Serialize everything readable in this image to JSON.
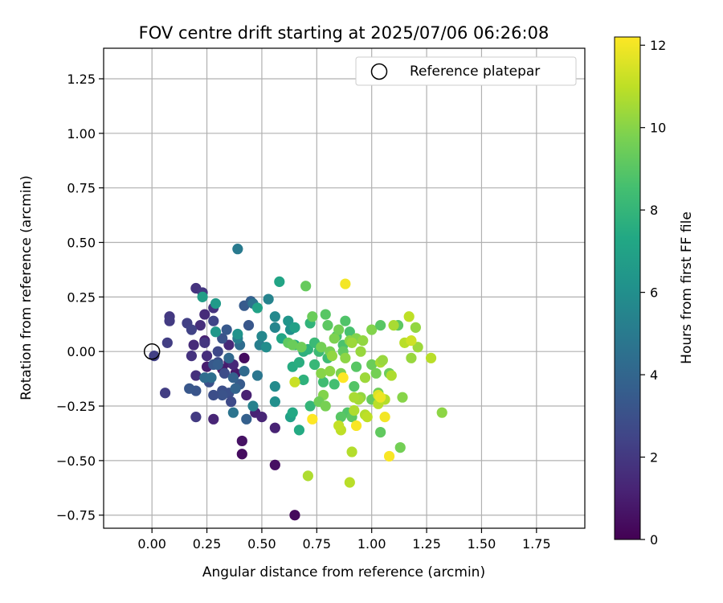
{
  "chart_data": {
    "type": "scatter",
    "title": "FOV centre drift starting at 2025/07/06 06:26:08",
    "xlabel": "Angular distance from reference (arcmin)",
    "ylabel": "Rotation from reference (arcmin)",
    "xlim": [
      -0.22,
      1.97
    ],
    "ylim": [
      -0.81,
      1.39
    ],
    "xticks": [
      "0.00",
      "0.25",
      "0.50",
      "0.75",
      "1.00",
      "1.25",
      "1.50",
      "1.75"
    ],
    "xtick_values": [
      0,
      0.25,
      0.5,
      0.75,
      1.0,
      1.25,
      1.5,
      1.75
    ],
    "yticks": [
      "−0.75",
      "−0.50",
      "−0.25",
      "0.00",
      "0.25",
      "0.50",
      "0.75",
      "1.00",
      "1.25"
    ],
    "ytick_values": [
      -0.75,
      -0.5,
      -0.25,
      0,
      0.25,
      0.5,
      0.75,
      1.0,
      1.25
    ],
    "grid": true,
    "legend": {
      "placement": "top-right",
      "entries": [
        "Reference platepar"
      ]
    },
    "reference_point": {
      "x": 0.0,
      "y": 0.0
    },
    "colorbar": {
      "label": "Hours from first FF file",
      "range": [
        0,
        12.2
      ],
      "ticks": [
        "0",
        "2",
        "4",
        "6",
        "8",
        "10",
        "12"
      ],
      "tick_values": [
        0,
        2,
        4,
        6,
        8,
        10,
        12
      ],
      "colormap": "viridis"
    },
    "points": [
      {
        "x": 0.65,
        "y": -0.75,
        "h": 0.3
      },
      {
        "x": 0.41,
        "y": -0.47,
        "h": 0.4
      },
      {
        "x": 0.41,
        "y": -0.41,
        "h": 0.6
      },
      {
        "x": 0.56,
        "y": -0.52,
        "h": 0.5
      },
      {
        "x": 0.42,
        "y": -0.03,
        "h": 0.4
      },
      {
        "x": 0.38,
        "y": -0.1,
        "h": 0.8
      },
      {
        "x": 0.32,
        "y": -0.08,
        "h": 0.9
      },
      {
        "x": 0.25,
        "y": -0.07,
        "h": 1.0
      },
      {
        "x": 0.24,
        "y": 0.05,
        "h": 1.1
      },
      {
        "x": 0.35,
        "y": -0.05,
        "h": 1.0
      },
      {
        "x": 0.47,
        "y": -0.28,
        "h": 1.2
      },
      {
        "x": 0.43,
        "y": -0.2,
        "h": 1.1
      },
      {
        "x": 0.5,
        "y": -0.3,
        "h": 1.3
      },
      {
        "x": 0.56,
        "y": -0.35,
        "h": 1.2
      },
      {
        "x": 0.28,
        "y": -0.31,
        "h": 1.3
      },
      {
        "x": 0.37,
        "y": -0.06,
        "h": 1.4
      },
      {
        "x": 0.35,
        "y": 0.03,
        "h": 1.4
      },
      {
        "x": 0.25,
        "y": -0.02,
        "h": 1.6
      },
      {
        "x": 0.19,
        "y": 0.03,
        "h": 1.5
      },
      {
        "x": 0.2,
        "y": -0.11,
        "h": 1.7
      },
      {
        "x": 0.18,
        "y": -0.02,
        "h": 1.8
      },
      {
        "x": 0.22,
        "y": 0.12,
        "h": 1.6
      },
      {
        "x": 0.24,
        "y": 0.17,
        "h": 1.5
      },
      {
        "x": 0.2,
        "y": 0.29,
        "h": 1.8
      },
      {
        "x": 0.23,
        "y": 0.27,
        "h": 2.0
      },
      {
        "x": 0.24,
        "y": 0.04,
        "h": 1.9
      },
      {
        "x": 0.28,
        "y": 0.2,
        "h": 1.8
      },
      {
        "x": 0.08,
        "y": 0.16,
        "h": 2.0
      },
      {
        "x": 0.08,
        "y": 0.14,
        "h": 2.1
      },
      {
        "x": 0.07,
        "y": 0.04,
        "h": 2.2
      },
      {
        "x": 0.16,
        "y": 0.13,
        "h": 2.3
      },
      {
        "x": 0.18,
        "y": 0.1,
        "h": 2.4
      },
      {
        "x": 0.2,
        "y": -0.3,
        "h": 2.1
      },
      {
        "x": 0.06,
        "y": -0.19,
        "h": 2.2
      },
      {
        "x": 0.01,
        "y": -0.02,
        "h": 2.3
      },
      {
        "x": 0.28,
        "y": 0.14,
        "h": 2.5
      },
      {
        "x": 0.3,
        "y": 0.0,
        "h": 2.6
      },
      {
        "x": 0.3,
        "y": -0.05,
        "h": 2.7
      },
      {
        "x": 0.33,
        "y": -0.1,
        "h": 2.8
      },
      {
        "x": 0.32,
        "y": -0.18,
        "h": 2.9
      },
      {
        "x": 0.35,
        "y": -0.19,
        "h": 3.0
      },
      {
        "x": 0.32,
        "y": -0.2,
        "h": 3.1
      },
      {
        "x": 0.28,
        "y": -0.2,
        "h": 2.9
      },
      {
        "x": 0.26,
        "y": -0.14,
        "h": 3.0
      },
      {
        "x": 0.2,
        "y": -0.18,
        "h": 3.2
      },
      {
        "x": 0.17,
        "y": -0.17,
        "h": 3.3
      },
      {
        "x": 0.36,
        "y": -0.23,
        "h": 2.7
      },
      {
        "x": 0.32,
        "y": 0.06,
        "h": 3.1
      },
      {
        "x": 0.34,
        "y": 0.1,
        "h": 3.4
      },
      {
        "x": 0.28,
        "y": -0.06,
        "h": 3.4
      },
      {
        "x": 0.3,
        "y": -0.06,
        "h": 3.6
      },
      {
        "x": 0.44,
        "y": 0.12,
        "h": 3.3
      },
      {
        "x": 0.42,
        "y": 0.21,
        "h": 3.5
      },
      {
        "x": 0.45,
        "y": 0.23,
        "h": 3.6
      },
      {
        "x": 0.4,
        "y": -0.15,
        "h": 3.5
      },
      {
        "x": 0.43,
        "y": -0.31,
        "h": 3.7
      },
      {
        "x": 0.37,
        "y": -0.12,
        "h": 3.8
      },
      {
        "x": 0.38,
        "y": -0.17,
        "h": 3.9
      },
      {
        "x": 0.35,
        "y": -0.03,
        "h": 4.1
      },
      {
        "x": 0.42,
        "y": -0.09,
        "h": 4.2
      },
      {
        "x": 0.4,
        "y": 0.03,
        "h": 4.3
      },
      {
        "x": 0.24,
        "y": -0.12,
        "h": 4.3
      },
      {
        "x": 0.27,
        "y": -0.12,
        "h": 4.4
      },
      {
        "x": 0.46,
        "y": 0.22,
        "h": 4.6
      },
      {
        "x": 0.48,
        "y": -0.11,
        "h": 4.8
      },
      {
        "x": 0.37,
        "y": -0.28,
        "h": 4.7
      },
      {
        "x": 0.39,
        "y": 0.47,
        "h": 5.0
      },
      {
        "x": 0.39,
        "y": 0.06,
        "h": 5.1
      },
      {
        "x": 0.46,
        "y": -0.25,
        "h": 5.3
      },
      {
        "x": 0.49,
        "y": 0.03,
        "h": 5.2
      },
      {
        "x": 0.5,
        "y": 0.07,
        "h": 5.6
      },
      {
        "x": 0.53,
        "y": 0.24,
        "h": 5.4
      },
      {
        "x": 0.56,
        "y": 0.11,
        "h": 5.5
      },
      {
        "x": 0.56,
        "y": 0.16,
        "h": 5.7
      },
      {
        "x": 0.52,
        "y": 0.02,
        "h": 5.9
      },
      {
        "x": 0.56,
        "y": -0.16,
        "h": 5.8
      },
      {
        "x": 0.56,
        "y": -0.23,
        "h": 6.0
      },
      {
        "x": 0.63,
        "y": 0.1,
        "h": 6.1
      },
      {
        "x": 0.62,
        "y": 0.14,
        "h": 6.3
      },
      {
        "x": 0.39,
        "y": 0.08,
        "h": 6.2
      },
      {
        "x": 0.29,
        "y": 0.09,
        "h": 6.4
      },
      {
        "x": 0.29,
        "y": 0.22,
        "h": 6.6
      },
      {
        "x": 0.23,
        "y": 0.25,
        "h": 6.8
      },
      {
        "x": 0.48,
        "y": 0.2,
        "h": 7.0
      },
      {
        "x": 0.58,
        "y": 0.32,
        "h": 7.1
      },
      {
        "x": 0.65,
        "y": 0.11,
        "h": 6.9
      },
      {
        "x": 0.59,
        "y": 0.06,
        "h": 7.2
      },
      {
        "x": 0.63,
        "y": -0.3,
        "h": 6.9
      },
      {
        "x": 0.64,
        "y": -0.28,
        "h": 7.3
      },
      {
        "x": 0.67,
        "y": -0.36,
        "h": 7.4
      },
      {
        "x": 0.64,
        "y": -0.07,
        "h": 7.5
      },
      {
        "x": 0.67,
        "y": -0.05,
        "h": 7.6
      },
      {
        "x": 0.65,
        "y": 0.03,
        "h": 7.4
      },
      {
        "x": 0.69,
        "y": 0.0,
        "h": 7.7
      },
      {
        "x": 0.71,
        "y": 0.01,
        "h": 7.8
      },
      {
        "x": 0.72,
        "y": 0.13,
        "h": 7.9
      },
      {
        "x": 0.69,
        "y": -0.13,
        "h": 7.8
      },
      {
        "x": 0.72,
        "y": -0.25,
        "h": 8.0
      },
      {
        "x": 0.74,
        "y": -0.06,
        "h": 8.1
      },
      {
        "x": 0.74,
        "y": 0.04,
        "h": 8.2
      },
      {
        "x": 0.76,
        "y": 0.0,
        "h": 8.3
      },
      {
        "x": 0.78,
        "y": -0.14,
        "h": 8.4
      },
      {
        "x": 0.8,
        "y": -0.03,
        "h": 8.3
      },
      {
        "x": 0.83,
        "y": -0.15,
        "h": 8.5
      },
      {
        "x": 0.84,
        "y": 0.07,
        "h": 8.6
      },
      {
        "x": 0.87,
        "y": 0.03,
        "h": 8.7
      },
      {
        "x": 0.88,
        "y": 0.14,
        "h": 8.8
      },
      {
        "x": 0.9,
        "y": 0.09,
        "h": 8.6
      },
      {
        "x": 0.92,
        "y": -0.16,
        "h": 8.9
      },
      {
        "x": 0.93,
        "y": -0.07,
        "h": 9.0
      },
      {
        "x": 0.89,
        "y": -0.28,
        "h": 8.8
      },
      {
        "x": 0.91,
        "y": -0.3,
        "h": 9.1
      },
      {
        "x": 0.86,
        "y": -0.3,
        "h": 9.0
      },
      {
        "x": 0.87,
        "y": 0.0,
        "h": 9.2
      },
      {
        "x": 0.79,
        "y": 0.17,
        "h": 9.0
      },
      {
        "x": 0.8,
        "y": 0.12,
        "h": 9.1
      },
      {
        "x": 0.7,
        "y": 0.3,
        "h": 9.3
      },
      {
        "x": 0.62,
        "y": 0.04,
        "h": 9.2
      },
      {
        "x": 0.64,
        "y": 0.03,
        "h": 9.4
      },
      {
        "x": 0.68,
        "y": 0.02,
        "h": 9.5
      },
      {
        "x": 0.73,
        "y": 0.16,
        "h": 9.4
      },
      {
        "x": 0.77,
        "y": 0.02,
        "h": 9.6
      },
      {
        "x": 0.81,
        "y": 0.0,
        "h": 9.7
      },
      {
        "x": 0.83,
        "y": 0.06,
        "h": 9.8
      },
      {
        "x": 0.85,
        "y": 0.1,
        "h": 9.6
      },
      {
        "x": 0.86,
        "y": -0.1,
        "h": 9.8
      },
      {
        "x": 0.78,
        "y": -0.2,
        "h": 9.9
      },
      {
        "x": 0.76,
        "y": -0.23,
        "h": 9.5
      },
      {
        "x": 0.79,
        "y": -0.25,
        "h": 9.7
      },
      {
        "x": 0.77,
        "y": -0.1,
        "h": 10.0
      },
      {
        "x": 0.81,
        "y": -0.09,
        "h": 10.1
      },
      {
        "x": 0.82,
        "y": -0.02,
        "h": 10.2
      },
      {
        "x": 0.88,
        "y": -0.03,
        "h": 10.1
      },
      {
        "x": 0.9,
        "y": 0.05,
        "h": 10.0
      },
      {
        "x": 0.93,
        "y": 0.06,
        "h": 9.9
      },
      {
        "x": 0.95,
        "y": 0.0,
        "h": 10.3
      },
      {
        "x": 0.96,
        "y": 0.05,
        "h": 10.2
      },
      {
        "x": 1.0,
        "y": 0.1,
        "h": 9.9
      },
      {
        "x": 1.0,
        "y": -0.06,
        "h": 9.4
      },
      {
        "x": 1.02,
        "y": -0.1,
        "h": 9.6
      },
      {
        "x": 1.0,
        "y": -0.22,
        "h": 9.3
      },
      {
        "x": 1.03,
        "y": -0.19,
        "h": 9.5
      },
      {
        "x": 1.04,
        "y": -0.37,
        "h": 9.2
      },
      {
        "x": 1.04,
        "y": 0.12,
        "h": 9.0
      },
      {
        "x": 1.08,
        "y": -0.1,
        "h": 9.4
      },
      {
        "x": 1.12,
        "y": 0.12,
        "h": 9.1
      },
      {
        "x": 1.13,
        "y": -0.44,
        "h": 9.6
      },
      {
        "x": 1.14,
        "y": -0.21,
        "h": 10.0
      },
      {
        "x": 1.18,
        "y": -0.03,
        "h": 10.3
      },
      {
        "x": 1.2,
        "y": 0.11,
        "h": 10.2
      },
      {
        "x": 1.21,
        "y": 0.02,
        "h": 10.4
      },
      {
        "x": 1.32,
        "y": -0.28,
        "h": 10.1
      },
      {
        "x": 1.27,
        "y": -0.03,
        "h": 10.9
      },
      {
        "x": 1.17,
        "y": 0.16,
        "h": 11.0
      },
      {
        "x": 1.1,
        "y": 0.12,
        "h": 10.6
      },
      {
        "x": 1.09,
        "y": -0.11,
        "h": 10.7
      },
      {
        "x": 1.06,
        "y": -0.22,
        "h": 10.8
      },
      {
        "x": 1.03,
        "y": -0.24,
        "h": 10.9
      },
      {
        "x": 1.04,
        "y": -0.05,
        "h": 10.6
      },
      {
        "x": 1.05,
        "y": -0.04,
        "h": 10.3
      },
      {
        "x": 0.97,
        "y": -0.12,
        "h": 10.4
      },
      {
        "x": 0.95,
        "y": -0.21,
        "h": 10.2
      },
      {
        "x": 0.94,
        "y": -0.22,
        "h": 10.5
      },
      {
        "x": 0.92,
        "y": -0.21,
        "h": 10.6
      },
      {
        "x": 0.92,
        "y": -0.27,
        "h": 10.7
      },
      {
        "x": 0.97,
        "y": -0.29,
        "h": 10.8
      },
      {
        "x": 0.98,
        "y": -0.3,
        "h": 11.0
      },
      {
        "x": 0.86,
        "y": -0.36,
        "h": 11.0
      },
      {
        "x": 0.85,
        "y": -0.34,
        "h": 11.1
      },
      {
        "x": 0.91,
        "y": -0.46,
        "h": 10.8
      },
      {
        "x": 0.9,
        "y": -0.6,
        "h": 10.9
      },
      {
        "x": 0.71,
        "y": -0.57,
        "h": 10.7
      },
      {
        "x": 0.65,
        "y": -0.14,
        "h": 11.2
      },
      {
        "x": 0.91,
        "y": 0.04,
        "h": 10.4
      },
      {
        "x": 1.15,
        "y": 0.04,
        "h": 10.9
      },
      {
        "x": 1.18,
        "y": 0.05,
        "h": 11.3
      },
      {
        "x": 1.03,
        "y": -0.2,
        "h": 11.6
      },
      {
        "x": 1.04,
        "y": -0.21,
        "h": 11.9
      },
      {
        "x": 1.06,
        "y": -0.3,
        "h": 12.0
      },
      {
        "x": 1.08,
        "y": -0.48,
        "h": 12.1
      },
      {
        "x": 0.93,
        "y": -0.34,
        "h": 12.1
      },
      {
        "x": 0.87,
        "y": -0.12,
        "h": 12.2
      },
      {
        "x": 0.73,
        "y": -0.31,
        "h": 12.2
      },
      {
        "x": 0.88,
        "y": 0.31,
        "h": 12.0
      }
    ]
  }
}
